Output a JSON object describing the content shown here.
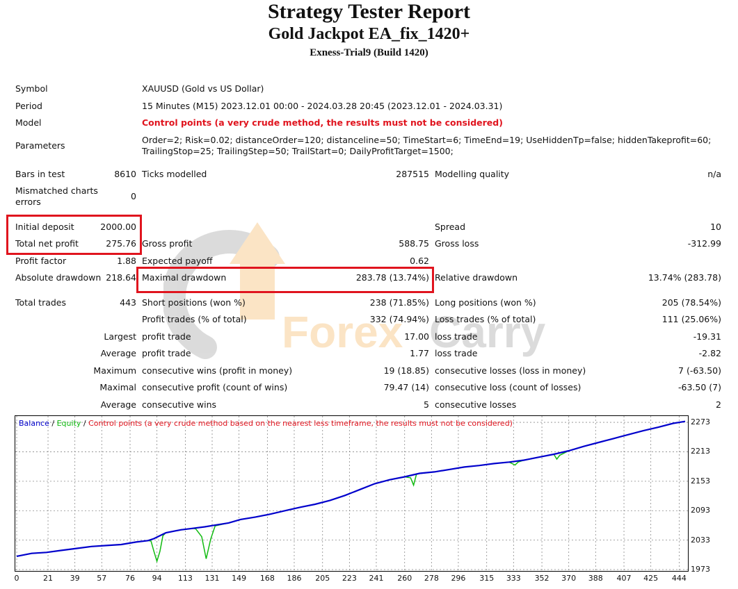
{
  "title": "Strategy Tester Report",
  "subtitle": "Gold Jackpot EA_fix_1420+",
  "server": "Exness-Trial9 (Build 1420)",
  "watermark": {
    "text_left": "Forex",
    "text_right": "Carry",
    "colors": {
      "orange": "#f6b45c",
      "gray": "#9a9a9a"
    }
  },
  "info": {
    "symbol_label": "Symbol",
    "symbol_value": "XAUUSD (Gold vs US Dollar)",
    "period_label": "Period",
    "period_value": "15 Minutes (M15) 2023.12.01 00:00 - 2024.03.28 20:45 (2023.12.01 - 2024.03.31)",
    "model_label": "Model",
    "model_value": "Control points (a very crude method, the results must not be considered)",
    "params_label": "Parameters",
    "params_line1": "Order=2; Risk=0.02; distanceOrder=120; distanceline=50; TimeStart=6; TimeEnd=19; UseHiddenTp=false; hiddenTakeprofit=60;",
    "params_line2": "TrailingStop=25; TrailingStep=50; TrailStart=0; DailyProfitTarget=1500;"
  },
  "stats": {
    "bars_label": "Bars in test",
    "bars_value": "8610",
    "ticks_label": "Ticks modelled",
    "ticks_value": "287515",
    "quality_label": "Modelling quality",
    "quality_value": "n/a",
    "mismatch_label1": "Mismatched charts",
    "mismatch_label2": "errors",
    "mismatch_value": "0",
    "initdep_label": "Initial deposit",
    "initdep_value": "2000.00",
    "spread_label": "Spread",
    "spread_value": "10",
    "netprofit_label": "Total net profit",
    "netprofit_value": "275.76",
    "grossprofit_label": "Gross profit",
    "grossprofit_value": "588.75",
    "grossloss_label": "Gross loss",
    "grossloss_value": "-312.99",
    "pf_label": "Profit factor",
    "pf_value": "1.88",
    "payoff_label": "Expected payoff",
    "payoff_value": "0.62",
    "absdd_label": "Absolute drawdown",
    "absdd_value": "218.64",
    "maxdd_label": "Maximal drawdown",
    "maxdd_value": "283.78 (13.74%)",
    "reldd_label": "Relative drawdown",
    "reldd_value": "13.74% (283.78)",
    "trades_label": "Total trades",
    "trades_value": "443",
    "short_label": "Short positions (won %)",
    "short_value": "238 (71.85%)",
    "long_label": "Long positions (won %)",
    "long_value": "205 (78.54%)",
    "profittr_label": "Profit trades (% of total)",
    "profittr_value": "332 (74.94%)",
    "losstr_label": "Loss trades (% of total)",
    "losstr_value": "111 (25.06%)",
    "largest_label": "Largest",
    "largest_profit_label": "profit trade",
    "largest_profit_value": "17.00",
    "largest_loss_label": "loss trade",
    "largest_loss_value": "-19.31",
    "average_label": "Average",
    "average_profit_label": "profit trade",
    "average_profit_value": "1.77",
    "average_loss_label": "loss trade",
    "average_loss_value": "-2.82",
    "maximum_label": "Maximum",
    "max_wins_label": "consecutive wins (profit in money)",
    "max_wins_value": "19 (18.85)",
    "max_losses_label": "consecutive losses (loss in money)",
    "max_losses_value": "7 (-63.50)",
    "maximal_label": "Maximal",
    "maximal_profit_label": "consecutive profit (count of wins)",
    "maximal_profit_value": "79.47 (14)",
    "maximal_loss_label": "consecutive loss (count of losses)",
    "maximal_loss_value": "-63.50 (7)",
    "average2_label": "Average",
    "avg_wins_label": "consecutive wins",
    "avg_wins_value": "5",
    "avg_losses_label": "consecutive losses",
    "avg_losses_value": "2"
  },
  "legend": {
    "balance": "Balance",
    "sep1": " / ",
    "equity": "Equity",
    "sep2": " / ",
    "note": "Control points (a very crude method based on the nearest less timeframe, the results must not be considered)",
    "colors": {
      "balance": "#0000cc",
      "equity": "#11bb11",
      "note": "#e0141e"
    }
  },
  "chart_data": {
    "type": "line",
    "x_ticks": [
      "0",
      "21",
      "39",
      "57",
      "76",
      "94",
      "113",
      "131",
      "149",
      "168",
      "186",
      "205",
      "223",
      "241",
      "260",
      "278",
      "296",
      "315",
      "333",
      "352",
      "370",
      "388",
      "407",
      "425",
      "444"
    ],
    "y_ticks": [
      "2273",
      "2213",
      "2153",
      "2093",
      "2033",
      "1973"
    ],
    "ylim": [
      1973,
      2283
    ],
    "xlim": [
      0,
      448
    ],
    "series": [
      {
        "name": "Balance",
        "color": "#0000cc",
        "points": [
          [
            0,
            2000
          ],
          [
            10,
            2006
          ],
          [
            20,
            2008
          ],
          [
            30,
            2012
          ],
          [
            40,
            2016
          ],
          [
            50,
            2020
          ],
          [
            60,
            2022
          ],
          [
            70,
            2024
          ],
          [
            80,
            2029
          ],
          [
            88,
            2032
          ],
          [
            92,
            2036
          ],
          [
            96,
            2042
          ],
          [
            100,
            2048
          ],
          [
            110,
            2054
          ],
          [
            118,
            2057
          ],
          [
            126,
            2060
          ],
          [
            134,
            2064
          ],
          [
            142,
            2068
          ],
          [
            150,
            2075
          ],
          [
            160,
            2080
          ],
          [
            170,
            2086
          ],
          [
            180,
            2093
          ],
          [
            190,
            2100
          ],
          [
            200,
            2106
          ],
          [
            210,
            2114
          ],
          [
            220,
            2124
          ],
          [
            230,
            2136
          ],
          [
            240,
            2148
          ],
          [
            250,
            2156
          ],
          [
            260,
            2162
          ],
          [
            270,
            2169
          ],
          [
            280,
            2172
          ],
          [
            290,
            2177
          ],
          [
            300,
            2182
          ],
          [
            310,
            2185
          ],
          [
            320,
            2189
          ],
          [
            330,
            2192
          ],
          [
            340,
            2196
          ],
          [
            350,
            2202
          ],
          [
            360,
            2208
          ],
          [
            370,
            2215
          ],
          [
            380,
            2224
          ],
          [
            390,
            2232
          ],
          [
            400,
            2240
          ],
          [
            410,
            2248
          ],
          [
            420,
            2256
          ],
          [
            430,
            2263
          ],
          [
            440,
            2271
          ],
          [
            448,
            2275
          ]
        ]
      },
      {
        "name": "Equity",
        "color": "#11bb11",
        "points": [
          [
            0,
            2000
          ],
          [
            10,
            2006
          ],
          [
            20,
            2008
          ],
          [
            30,
            2012
          ],
          [
            40,
            2016
          ],
          [
            50,
            2020
          ],
          [
            60,
            2022
          ],
          [
            70,
            2024
          ],
          [
            80,
            2029
          ],
          [
            88,
            2032
          ],
          [
            90,
            2031
          ],
          [
            92,
            2010
          ],
          [
            94,
            1990
          ],
          [
            96,
            2010
          ],
          [
            98,
            2042
          ],
          [
            100,
            2048
          ],
          [
            110,
            2054
          ],
          [
            118,
            2057
          ],
          [
            120,
            2056
          ],
          [
            124,
            2040
          ],
          [
            127,
            1995
          ],
          [
            130,
            2035
          ],
          [
            133,
            2062
          ],
          [
            142,
            2068
          ],
          [
            150,
            2075
          ],
          [
            160,
            2080
          ],
          [
            170,
            2086
          ],
          [
            180,
            2093
          ],
          [
            190,
            2100
          ],
          [
            200,
            2106
          ],
          [
            210,
            2114
          ],
          [
            220,
            2124
          ],
          [
            230,
            2136
          ],
          [
            240,
            2148
          ],
          [
            250,
            2156
          ],
          [
            260,
            2162
          ],
          [
            264,
            2160
          ],
          [
            266,
            2145
          ],
          [
            268,
            2168
          ],
          [
            280,
            2172
          ],
          [
            290,
            2177
          ],
          [
            300,
            2182
          ],
          [
            310,
            2185
          ],
          [
            320,
            2189
          ],
          [
            330,
            2192
          ],
          [
            334,
            2186
          ],
          [
            336,
            2192
          ],
          [
            340,
            2196
          ],
          [
            350,
            2202
          ],
          [
            360,
            2208
          ],
          [
            362,
            2198
          ],
          [
            364,
            2206
          ],
          [
            370,
            2215
          ],
          [
            380,
            2224
          ],
          [
            390,
            2232
          ],
          [
            400,
            2240
          ],
          [
            410,
            2248
          ],
          [
            420,
            2256
          ],
          [
            430,
            2263
          ],
          [
            440,
            2271
          ],
          [
            448,
            2275
          ]
        ]
      }
    ]
  }
}
